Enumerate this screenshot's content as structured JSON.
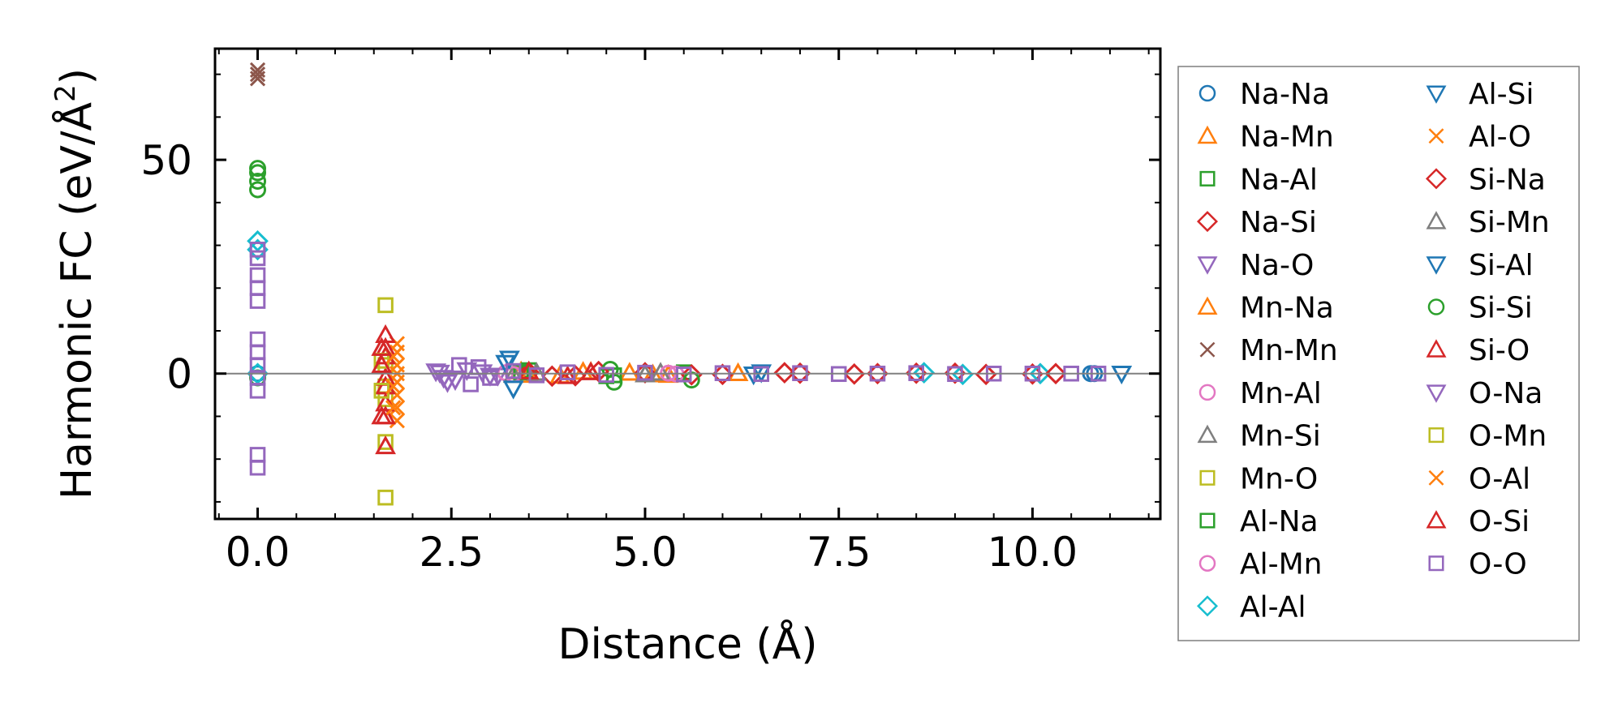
{
  "chart_data": {
    "type": "scatter",
    "title": "",
    "xlabel": "Distance (Å)",
    "ylabel_main": "Harmonic FC (eV/Å",
    "ylabel_sup": "2",
    "ylabel_close": ")",
    "xlim": [
      -0.55,
      11.65
    ],
    "ylim": [
      -34,
      76
    ],
    "xticks": [
      {
        "value": 0.0,
        "label": "0.0"
      },
      {
        "value": 2.5,
        "label": "2.5"
      },
      {
        "value": 5.0,
        "label": "5.0"
      },
      {
        "value": 7.5,
        "label": "7.5"
      },
      {
        "value": 10.0,
        "label": "10.0"
      }
    ],
    "yticks": [
      {
        "value": 0,
        "label": "0"
      },
      {
        "value": 50,
        "label": "50"
      }
    ],
    "zero_line": true,
    "grid": false,
    "legend_position": "outside-right",
    "series": [
      {
        "name": "Na-Na",
        "color": "#1f77b4",
        "marker": "circle",
        "x": [
          0.0,
          10.75,
          10.8
        ],
        "y": [
          0.0,
          0.0,
          0.0
        ]
      },
      {
        "name": "Na-Mn",
        "color": "#ff7f0e",
        "marker": "triangle-up",
        "x": [
          3.4,
          3.9,
          4.2,
          4.8,
          5.3,
          6.2
        ],
        "y": [
          0.5,
          -0.5,
          0.4,
          0.2,
          -0.3,
          0.1
        ]
      },
      {
        "name": "Na-Al",
        "color": "#2ca02c",
        "marker": "square",
        "x": [
          3.5,
          4.5,
          5.5
        ],
        "y": [
          0.8,
          -0.6,
          0.3
        ]
      },
      {
        "name": "Na-Si",
        "color": "#d62728",
        "marker": "diamond",
        "x": [
          3.5,
          4.1,
          5.0,
          6.0,
          7.0,
          8.0,
          9.0,
          10.0
        ],
        "y": [
          0.3,
          -0.5,
          0.2,
          -0.2,
          0.1,
          0.0,
          0.1,
          -0.1
        ]
      },
      {
        "name": "Na-O",
        "color": "#9467bd",
        "marker": "triangle-down",
        "x": [
          2.35,
          2.4,
          2.45,
          2.9,
          3.1
        ],
        "y": [
          0.2,
          -1.0,
          -2.0,
          0.3,
          -0.5
        ]
      },
      {
        "name": "Mn-Na",
        "color": "#ff7f0e",
        "marker": "triangle-up",
        "x": [
          3.5,
          4.3,
          5.1
        ],
        "y": [
          -0.3,
          0.4,
          -0.2
        ]
      },
      {
        "name": "Mn-Mn",
        "color": "#8c564b",
        "marker": "x",
        "x": [
          0.0,
          0.0,
          0.0
        ],
        "y": [
          69,
          70,
          71
        ]
      },
      {
        "name": "Mn-Al",
        "color": "#e377c2",
        "marker": "circle",
        "x": [
          3.2,
          5.4
        ],
        "y": [
          0.2,
          -0.1
        ]
      },
      {
        "name": "Mn-Si",
        "color": "#7f7f7f",
        "marker": "triangle-up",
        "x": [
          3.3,
          5.2
        ],
        "y": [
          -0.3,
          0.2
        ]
      },
      {
        "name": "Mn-O",
        "color": "#bcbd22",
        "marker": "square",
        "x": [
          1.65,
          1.65,
          1.65,
          1.65,
          1.65,
          1.65
        ],
        "y": [
          16,
          2,
          -3,
          -6,
          -16,
          -29
        ]
      },
      {
        "name": "Al-Na",
        "color": "#2ca02c",
        "marker": "square",
        "x": [
          3.4,
          4.6
        ],
        "y": [
          0.3,
          -0.4
        ]
      },
      {
        "name": "Al-Mn",
        "color": "#e377c2",
        "marker": "circle",
        "x": [
          3.3,
          5.3
        ],
        "y": [
          -0.2,
          0.1
        ]
      },
      {
        "name": "Al-Al",
        "color": "#17becf",
        "marker": "diamond",
        "x": [
          0.0,
          0.0,
          0.0,
          8.6,
          9.1,
          10.1
        ],
        "y": [
          31,
          29,
          0,
          0.2,
          -0.2,
          0.0
        ]
      },
      {
        "name": "Al-Si",
        "color": "#1f77b4",
        "marker": "triangle-down",
        "x": [
          3.25,
          3.3,
          6.5,
          11.15
        ],
        "y": [
          3.5,
          -3.5,
          0.3,
          0.0
        ]
      },
      {
        "name": "Al-O",
        "color": "#ff7f0e",
        "marker": "x",
        "x": [
          1.8,
          1.8,
          1.8,
          1.8,
          1.8,
          1.8,
          1.8,
          1.8
        ],
        "y": [
          7,
          5,
          2,
          0,
          -2,
          -5,
          -8,
          -11
        ]
      },
      {
        "name": "Si-Na",
        "color": "#d62728",
        "marker": "diamond",
        "x": [
          3.8,
          4.4,
          5.6,
          6.8,
          7.7,
          8.5,
          9.4,
          10.3
        ],
        "y": [
          -0.6,
          0.5,
          -0.3,
          0.2,
          -0.1,
          0.1,
          -0.2,
          0.0
        ]
      },
      {
        "name": "Si-Mn",
        "color": "#7f7f7f",
        "marker": "triangle-up",
        "x": [
          3.6,
          5.0
        ],
        "y": [
          0.2,
          -0.2
        ]
      },
      {
        "name": "Si-Al",
        "color": "#1f77b4",
        "marker": "triangle-down",
        "x": [
          3.2,
          6.4
        ],
        "y": [
          2.5,
          -0.2
        ]
      },
      {
        "name": "Si-Si",
        "color": "#2ca02c",
        "marker": "circle",
        "x": [
          0.0,
          0.0,
          0.0,
          0.0,
          0.0,
          4.55,
          4.6,
          5.6
        ],
        "y": [
          48,
          47,
          45,
          43,
          -1,
          1.0,
          -2.0,
          -1.5
        ]
      },
      {
        "name": "Si-O",
        "color": "#d62728",
        "marker": "triangle-up",
        "x": [
          1.65,
          1.65,
          1.65,
          1.65,
          1.65,
          1.65,
          1.65,
          1.65,
          3.5,
          4.0,
          4.3
        ],
        "y": [
          9,
          6,
          4,
          -1,
          -3,
          -7,
          -10,
          -17,
          0.5,
          -0.6,
          0.3
        ]
      },
      {
        "name": "O-Na",
        "color": "#9467bd",
        "marker": "triangle-down",
        "x": [
          2.3,
          2.55,
          2.7,
          3.0
        ],
        "y": [
          0.5,
          -1.5,
          0.8,
          -0.5
        ]
      },
      {
        "name": "O-Mn",
        "color": "#bcbd22",
        "marker": "square",
        "x": [
          1.6,
          1.6
        ],
        "y": [
          -4,
          3
        ]
      },
      {
        "name": "O-Al",
        "color": "#ff7f0e",
        "marker": "x",
        "x": [
          1.75,
          1.75,
          1.75
        ],
        "y": [
          4,
          -3,
          -8
        ]
      },
      {
        "name": "O-Si",
        "color": "#d62728",
        "marker": "triangle-up",
        "x": [
          1.6,
          1.6,
          1.6
        ],
        "y": [
          6,
          2,
          -10
        ]
      },
      {
        "name": "O-O",
        "color": "#9467bd",
        "marker": "square",
        "x": [
          0.0,
          0.0,
          0.0,
          0.0,
          0.0,
          0.0,
          0.0,
          0.0,
          0.0,
          0.0,
          0.0,
          0.0,
          2.6,
          2.75,
          2.85,
          3.0,
          3.3,
          3.6,
          4.0,
          4.5,
          5.0,
          5.5,
          6.0,
          6.5,
          7.0,
          7.5,
          8.0,
          8.5,
          9.0,
          9.5,
          10.0,
          10.5,
          10.85
        ],
        "y": [
          29,
          27,
          23,
          20,
          17,
          8,
          5,
          2,
          -1,
          -4,
          -19,
          -22,
          2.0,
          -2.5,
          1.5,
          -1.0,
          0.6,
          -0.4,
          0.3,
          -0.3,
          0.2,
          -0.2,
          0.1,
          -0.1,
          0.1,
          -0.1,
          0.0,
          0.1,
          -0.1,
          0.0,
          0.0,
          0.0,
          0.0
        ]
      }
    ]
  }
}
